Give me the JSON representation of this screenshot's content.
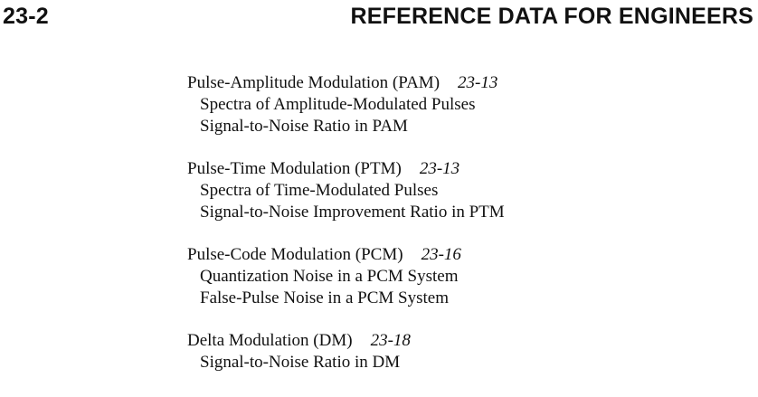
{
  "header": {
    "page_number": "23-2",
    "book_title": "REFERENCE DATA FOR ENGINEERS"
  },
  "toc": {
    "sections": [
      {
        "title": "Pulse-Amplitude Modulation (PAM)",
        "page": "23-13",
        "subsections": [
          "Spectra of Amplitude-Modulated Pulses",
          "Signal-to-Noise Ratio in PAM"
        ]
      },
      {
        "title": "Pulse-Time Modulation (PTM)",
        "page": "23-13",
        "subsections": [
          "Spectra of Time-Modulated Pulses",
          "Signal-to-Noise Improvement Ratio in PTM"
        ]
      },
      {
        "title": "Pulse-Code Modulation (PCM)",
        "page": "23-16",
        "subsections": [
          "Quantization Noise in a PCM System",
          "False-Pulse Noise in a PCM System"
        ]
      },
      {
        "title": "Delta Modulation (DM)",
        "page": "23-18",
        "subsections": [
          "Signal-to-Noise Ratio in DM"
        ]
      }
    ]
  }
}
